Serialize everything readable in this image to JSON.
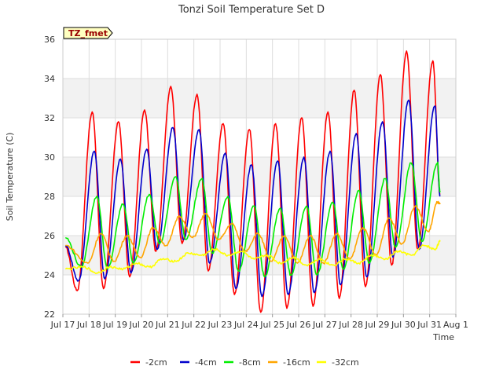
{
  "chart_data": {
    "type": "line",
    "title": "Tonzi Soil Temperature Set D",
    "xlabel": "Time",
    "ylabel": "Soil Temperature (C)",
    "badge": "TZ_fmet",
    "xlim": [
      17,
      32
    ],
    "ylim": [
      22,
      36
    ],
    "yticks": [
      22,
      24,
      26,
      28,
      30,
      32,
      34,
      36
    ],
    "xticks": [
      {
        "x": 17,
        "label": "Jul 17"
      },
      {
        "x": 18,
        "label": "Jul 18"
      },
      {
        "x": 19,
        "label": "Jul 19"
      },
      {
        "x": 20,
        "label": "Jul 20"
      },
      {
        "x": 21,
        "label": "Jul 21"
      },
      {
        "x": 22,
        "label": "Jul 22"
      },
      {
        "x": 23,
        "label": "Jul 23"
      },
      {
        "x": 24,
        "label": "Jul 24"
      },
      {
        "x": 25,
        "label": "Jul 25"
      },
      {
        "x": 26,
        "label": "Jul 26"
      },
      {
        "x": 27,
        "label": "Jul 27"
      },
      {
        "x": 28,
        "label": "Jul 28"
      },
      {
        "x": 29,
        "label": "Jul 29"
      },
      {
        "x": 30,
        "label": "Jul 30"
      },
      {
        "x": 31,
        "label": "Jul 31"
      },
      {
        "x": 32,
        "label": "Aug 1"
      }
    ],
    "x_units": "day of July (fractional)",
    "grid": true,
    "legend_position": "bottom",
    "series": [
      {
        "name": "-2cm",
        "color": "#ff0000",
        "mins": [
          [
            17.1,
            25.4
          ],
          [
            17.55,
            23.2
          ],
          [
            18.55,
            23.3
          ],
          [
            19.55,
            23.9
          ],
          [
            20.55,
            25.2
          ],
          [
            21.55,
            25.6
          ],
          [
            22.55,
            24.2
          ],
          [
            23.55,
            23.0
          ],
          [
            24.55,
            22.1
          ],
          [
            25.55,
            22.3
          ],
          [
            26.55,
            22.4
          ],
          [
            27.55,
            22.8
          ],
          [
            28.55,
            23.4
          ],
          [
            29.55,
            24.5
          ],
          [
            30.55,
            25.3
          ]
        ],
        "maxs": [
          [
            18.12,
            32.3
          ],
          [
            19.12,
            31.8
          ],
          [
            20.12,
            32.4
          ],
          [
            21.12,
            33.6
          ],
          [
            22.12,
            33.2
          ],
          [
            23.12,
            31.7
          ],
          [
            24.12,
            31.4
          ],
          [
            25.12,
            31.7
          ],
          [
            26.12,
            32.0
          ],
          [
            27.12,
            32.3
          ],
          [
            28.12,
            33.4
          ],
          [
            29.12,
            34.2
          ],
          [
            30.12,
            35.4
          ],
          [
            31.12,
            34.9
          ]
        ],
        "end": [
          31.4,
          28.1
        ]
      },
      {
        "name": "-4cm",
        "color": "#0000cc",
        "mins": [
          [
            17.1,
            25.5
          ],
          [
            17.6,
            23.7
          ],
          [
            18.6,
            23.8
          ],
          [
            19.6,
            24.1
          ],
          [
            20.6,
            25.3
          ],
          [
            21.6,
            25.8
          ],
          [
            22.6,
            24.6
          ],
          [
            23.6,
            23.3
          ],
          [
            24.6,
            22.9
          ],
          [
            25.6,
            23.0
          ],
          [
            26.6,
            23.1
          ],
          [
            27.6,
            23.5
          ],
          [
            28.6,
            23.9
          ],
          [
            29.6,
            24.9
          ],
          [
            30.6,
            25.3
          ]
        ],
        "maxs": [
          [
            18.2,
            30.3
          ],
          [
            19.2,
            29.9
          ],
          [
            20.2,
            30.4
          ],
          [
            21.2,
            31.5
          ],
          [
            22.2,
            31.4
          ],
          [
            23.2,
            30.2
          ],
          [
            24.2,
            29.6
          ],
          [
            25.2,
            29.8
          ],
          [
            26.2,
            30.0
          ],
          [
            27.2,
            30.3
          ],
          [
            28.2,
            31.2
          ],
          [
            29.2,
            31.8
          ],
          [
            30.2,
            32.9
          ],
          [
            31.2,
            32.6
          ]
        ],
        "end": [
          31.4,
          28.0
        ]
      },
      {
        "name": "-8cm",
        "color": "#00ee00",
        "mins": [
          [
            17.1,
            25.9
          ],
          [
            17.7,
            24.4
          ],
          [
            18.7,
            24.3
          ],
          [
            19.7,
            24.6
          ],
          [
            20.7,
            25.6
          ],
          [
            21.7,
            25.8
          ],
          [
            22.7,
            25.1
          ],
          [
            23.7,
            24.2
          ],
          [
            24.7,
            23.9
          ],
          [
            25.7,
            24.0
          ],
          [
            26.7,
            24.0
          ],
          [
            27.7,
            24.3
          ],
          [
            28.7,
            24.6
          ],
          [
            29.7,
            25.4
          ],
          [
            30.7,
            25.7
          ]
        ],
        "maxs": [
          [
            18.3,
            28.0
          ],
          [
            19.3,
            27.6
          ],
          [
            20.3,
            28.1
          ],
          [
            21.3,
            29.0
          ],
          [
            22.3,
            28.9
          ],
          [
            23.3,
            28.0
          ],
          [
            24.3,
            27.5
          ],
          [
            25.3,
            27.4
          ],
          [
            26.3,
            27.5
          ],
          [
            27.3,
            27.7
          ],
          [
            28.3,
            28.3
          ],
          [
            29.3,
            28.9
          ],
          [
            30.3,
            29.7
          ],
          [
            31.3,
            29.7
          ]
        ],
        "end": [
          31.4,
          28.2
        ]
      },
      {
        "name": "-16cm",
        "color": "#ffa500",
        "mins": [
          [
            17.1,
            25.5
          ],
          [
            17.95,
            24.6
          ],
          [
            18.95,
            24.7
          ],
          [
            19.95,
            24.9
          ],
          [
            20.95,
            25.5
          ],
          [
            21.95,
            25.9
          ],
          [
            22.95,
            25.8
          ],
          [
            23.95,
            25.2
          ],
          [
            24.95,
            24.7
          ],
          [
            25.95,
            24.6
          ],
          [
            26.95,
            24.6
          ],
          [
            27.95,
            24.8
          ],
          [
            28.95,
            25.0
          ],
          [
            29.95,
            25.6
          ],
          [
            30.95,
            26.2
          ]
        ],
        "maxs": [
          [
            18.45,
            26.1
          ],
          [
            19.45,
            26.0
          ],
          [
            20.45,
            26.4
          ],
          [
            21.45,
            27.0
          ],
          [
            22.45,
            27.1
          ],
          [
            23.45,
            26.6
          ],
          [
            24.45,
            26.1
          ],
          [
            25.45,
            26.0
          ],
          [
            26.45,
            26.0
          ],
          [
            27.45,
            26.1
          ],
          [
            28.45,
            26.4
          ],
          [
            29.45,
            26.9
          ],
          [
            30.45,
            27.5
          ],
          [
            31.3,
            27.7
          ]
        ],
        "end": [
          31.4,
          27.6
        ]
      },
      {
        "name": "-32cm",
        "color": "#ffff00",
        "mins": [
          [
            17.1,
            24.3
          ],
          [
            18.3,
            24.1
          ],
          [
            19.3,
            24.3
          ],
          [
            20.3,
            24.4
          ],
          [
            21.3,
            24.7
          ],
          [
            22.3,
            25.0
          ],
          [
            23.3,
            25.0
          ],
          [
            24.3,
            24.8
          ],
          [
            25.3,
            24.6
          ],
          [
            26.3,
            24.5
          ],
          [
            27.3,
            24.5
          ],
          [
            28.3,
            24.6
          ],
          [
            29.3,
            24.8
          ],
          [
            30.3,
            25.0
          ],
          [
            31.2,
            25.3
          ]
        ],
        "maxs": [
          [
            17.8,
            24.4
          ],
          [
            18.8,
            24.4
          ],
          [
            19.8,
            24.6
          ],
          [
            20.8,
            24.8
          ],
          [
            21.8,
            25.1
          ],
          [
            22.8,
            25.3
          ],
          [
            23.8,
            25.2
          ],
          [
            24.8,
            25.0
          ],
          [
            25.8,
            24.9
          ],
          [
            26.8,
            24.8
          ],
          [
            27.8,
            24.8
          ],
          [
            28.8,
            25.0
          ],
          [
            29.8,
            25.2
          ],
          [
            30.8,
            25.5
          ]
        ],
        "end": [
          31.4,
          25.7
        ]
      }
    ]
  }
}
